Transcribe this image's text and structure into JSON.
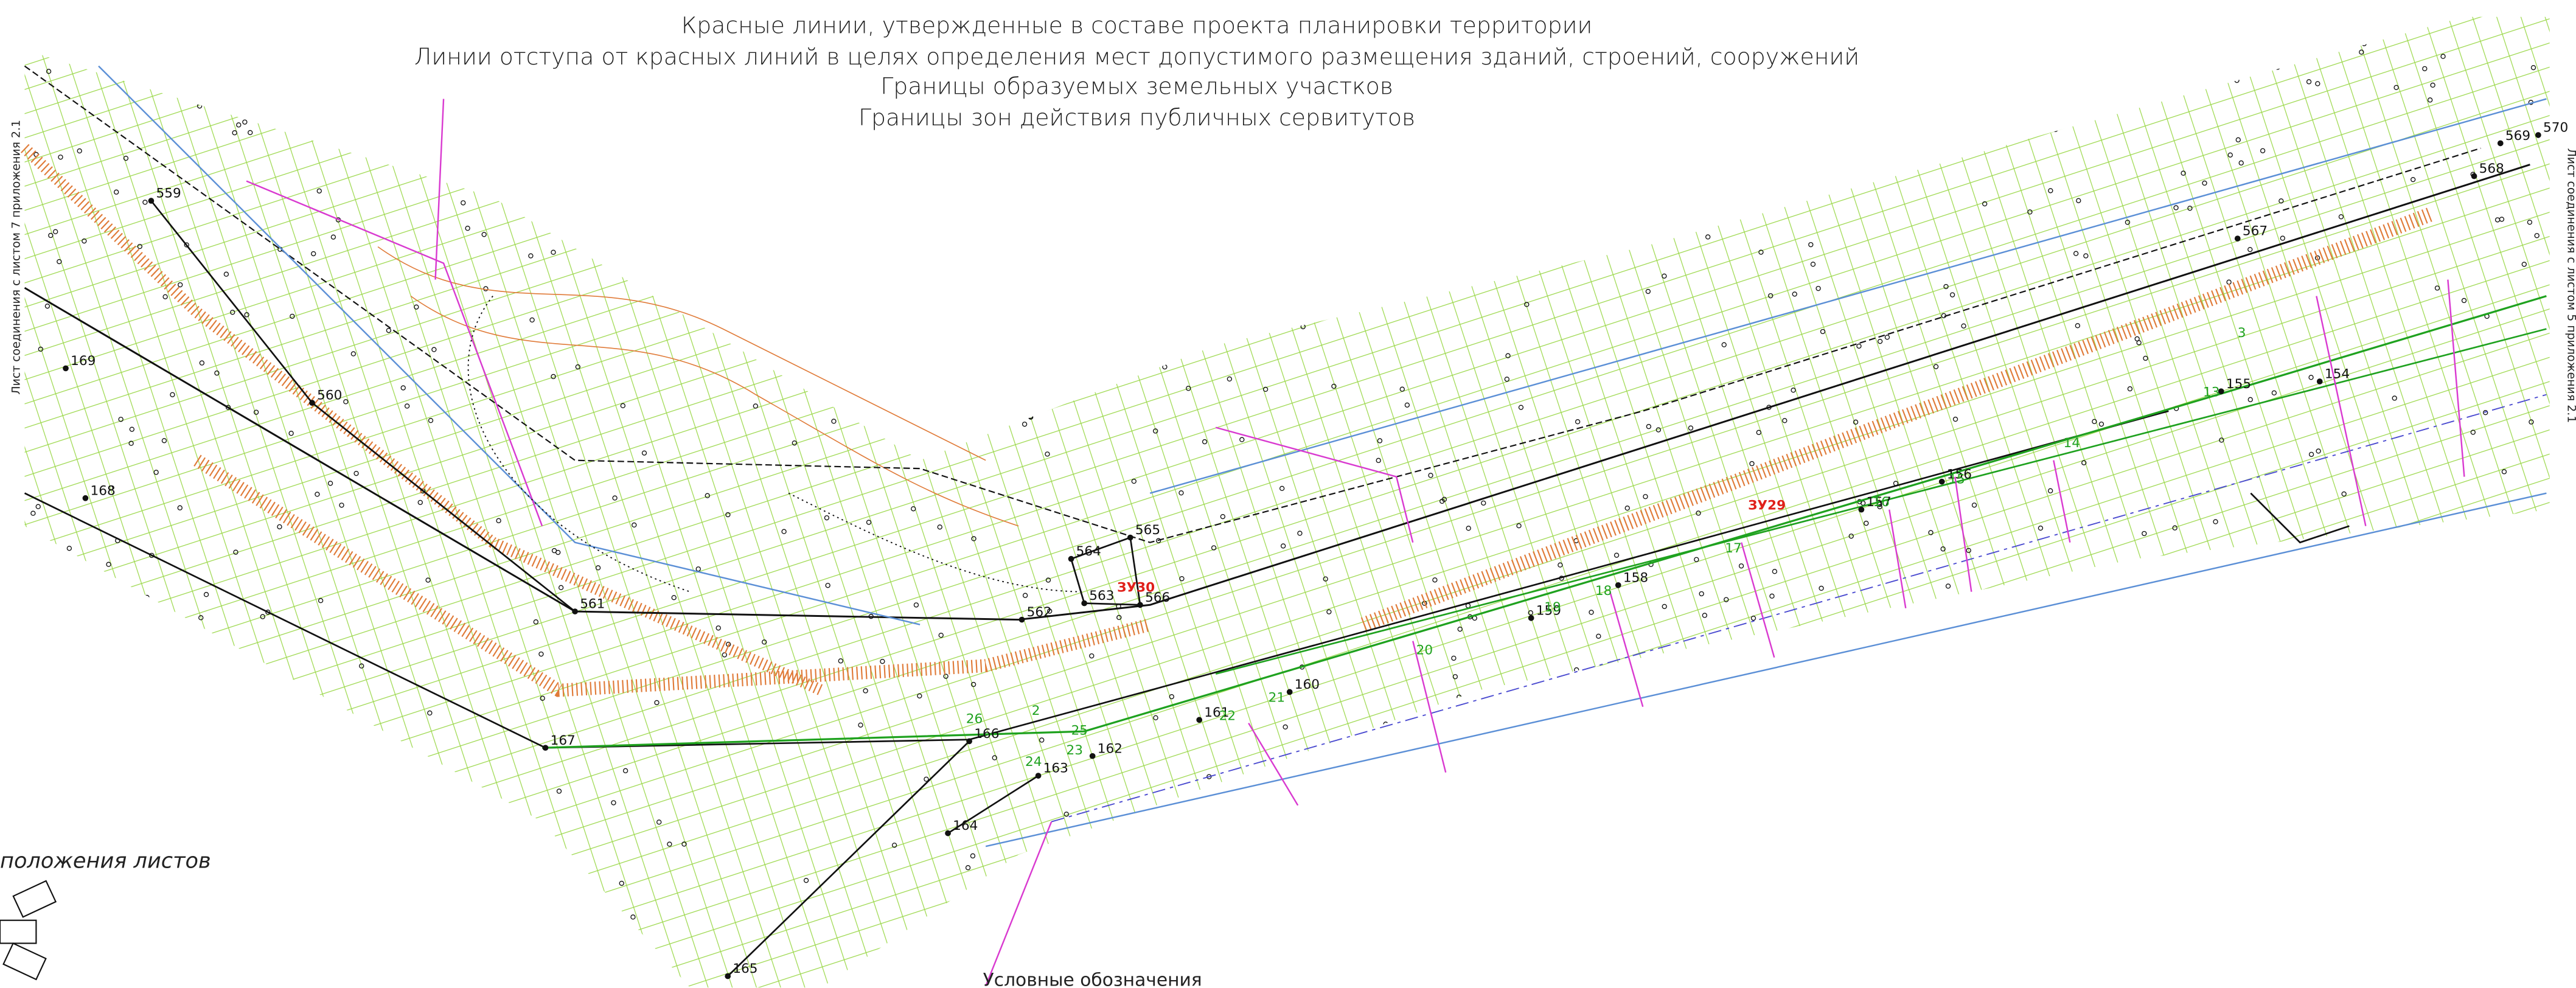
{
  "header": {
    "lines": [
      "Красные линии, утвержденные в составе проекта планировки территории",
      "Линии отступа от красных линий в целях определения мест допустимого размещения зданий, строений, сооружений",
      "Границы образуемых  земельных участков",
      "Границы зон действия публичных сервитутов"
    ]
  },
  "side_labels": {
    "left": "Лист соединения с листом 7 приложения 2.1",
    "right": "Лист соединения с листом 5 приложения 2.1"
  },
  "footer": {
    "sheet_scheme": "положения листов",
    "legend_title": "Условные обозначения"
  },
  "points": [
    "559",
    "560",
    "561",
    "562",
    "563",
    "564",
    "565",
    "566",
    "567",
    "568",
    "569",
    "570",
    "158",
    "159",
    "160",
    "161",
    "162",
    "163",
    "164",
    "165",
    "166",
    "167",
    "168",
    "169",
    "154",
    "155",
    "156",
    "157"
  ],
  "green_labels": [
    "26",
    "25",
    "24",
    "23",
    "22",
    "21",
    "20",
    "19",
    "18",
    "17",
    "16",
    "15",
    "14",
    "13",
    "3",
    "2"
  ],
  "plot_labels": [
    "ЗУ30",
    "ЗУ29"
  ]
}
